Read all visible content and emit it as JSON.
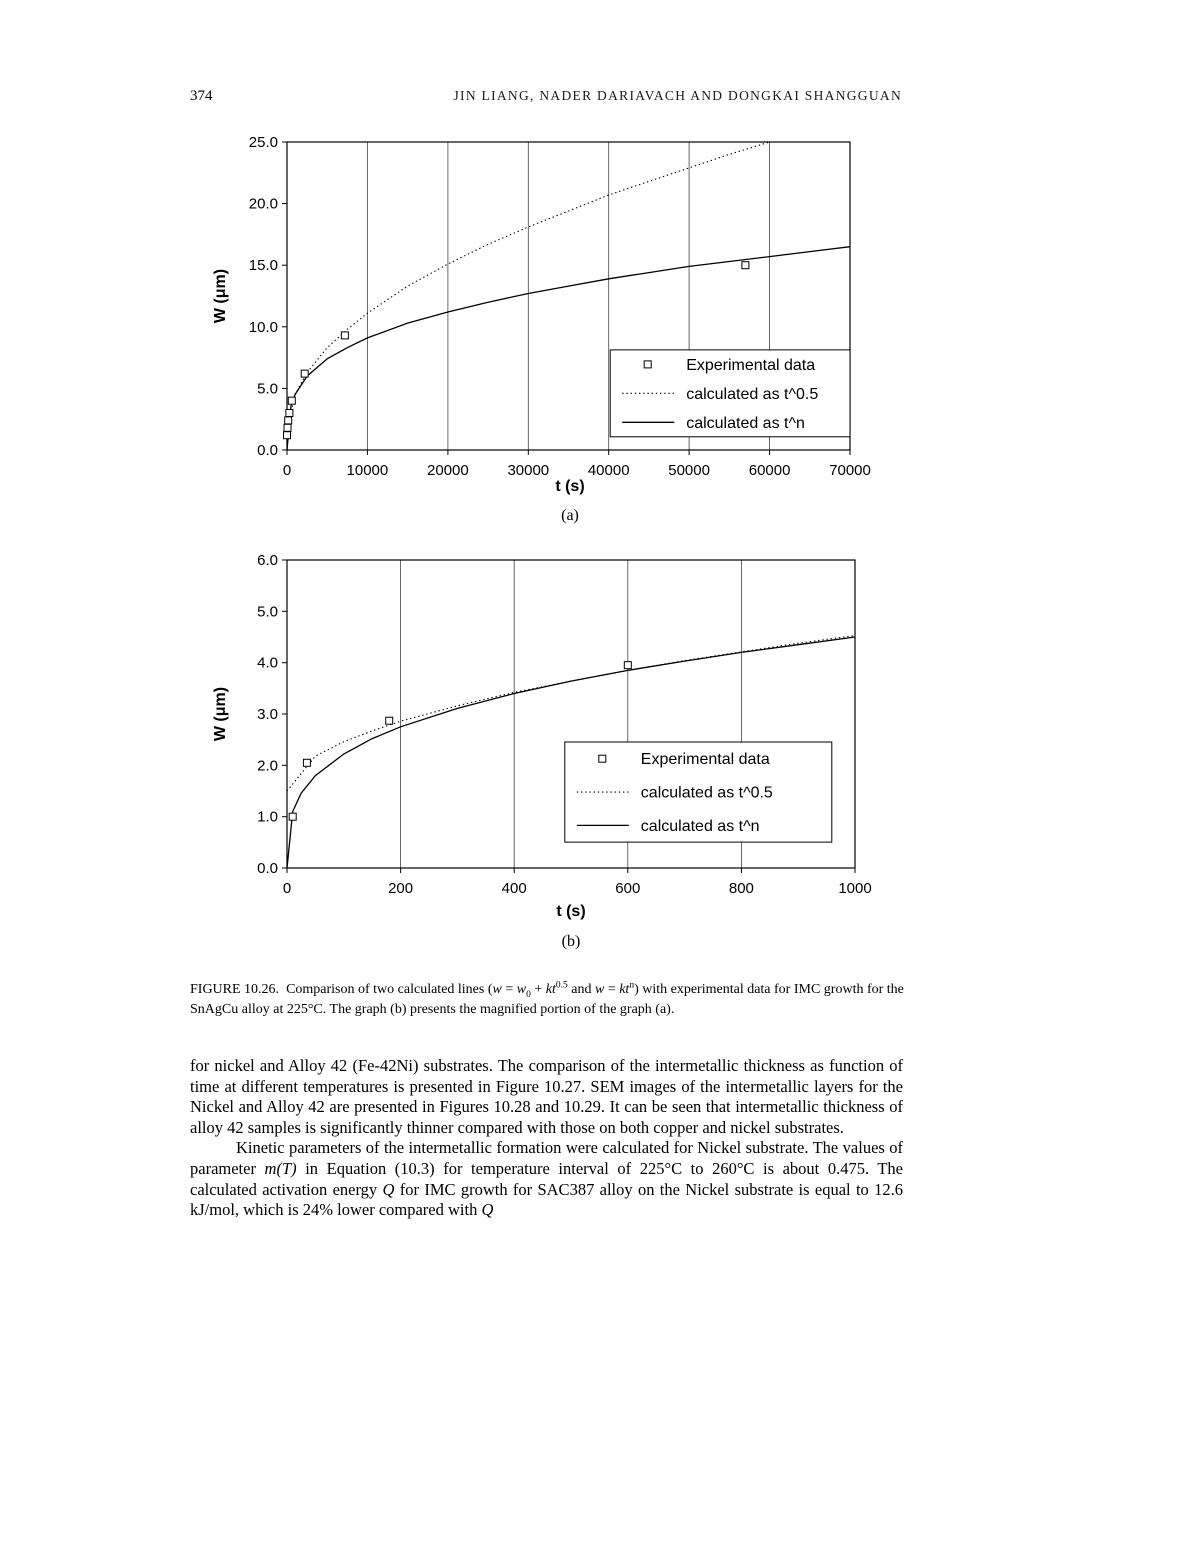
{
  "page": {
    "number": "374",
    "running_title": "JIN LIANG, NADER DARIAVACH AND DONGKAI SHANGGUAN"
  },
  "figure": {
    "caption_parts": [
      {
        "t": "FIGURE 10.26."
      },
      {
        "t": " Comparison of two calculated lines ("
      },
      {
        "s": "i",
        "t": "w"
      },
      {
        "t": " = "
      },
      {
        "s": "i",
        "t": "w"
      },
      {
        "s": "sub",
        "t": "0"
      },
      {
        "t": " + "
      },
      {
        "s": "i",
        "t": "kt"
      },
      {
        "s": "sup",
        "t": "0.5"
      },
      {
        "t": " and "
      },
      {
        "s": "i",
        "t": "w"
      },
      {
        "t": " = "
      },
      {
        "s": "i",
        "t": "kt"
      },
      {
        "s": "sup",
        "t": "n"
      },
      {
        "t": ") with experimental data for IMC growth for the SnAgCu alloy at 225°C. The graph (b) presents the magnified portion of the graph (a)."
      }
    ]
  },
  "body": {
    "p1_parts": [
      {
        "t": "for nickel and Alloy 42 (Fe-42Ni) substrates. The comparison of the intermetallic thickness as function of time at different temperatures is presented in Figure 10.27. SEM images of the intermetallic layers for the Nickel and Alloy 42 are presented in Figures 10.28 and 10.29. It can be seen that intermetallic thickness of alloy 42 samples is significantly thinner compared with those on both copper and nickel substrates."
      }
    ],
    "p2_parts": [
      {
        "t": "Kinetic parameters of the intermetallic formation were calculated for Nickel substrate. The values of parameter "
      },
      {
        "s": "i",
        "t": "m(T)"
      },
      {
        "t": " in Equation (10.3) for temperature interval of 225°C to 260°C is about 0.475. The calculated activation energy "
      },
      {
        "s": "i",
        "t": "Q"
      },
      {
        "t": " for IMC growth for SAC387 alloy on the Nickel substrate is equal to 12.6 kJ/mol, which is 24% lower compared with "
      },
      {
        "s": "i",
        "t": "Q"
      }
    ]
  },
  "chart_data": [
    {
      "id": "a",
      "type": "line",
      "xlabel": "t (s)",
      "ylabel": "W (μm)",
      "sublabel": "(a)",
      "xlim": [
        0,
        70000
      ],
      "ylim": [
        0,
        25
      ],
      "xticks": [
        0,
        10000,
        20000,
        30000,
        40000,
        50000,
        60000,
        70000
      ],
      "xtick_labels": [
        "0",
        "10000",
        "20000",
        "30000",
        "40000",
        "50000",
        "60000",
        "70000"
      ],
      "yticks": [
        0,
        5,
        10,
        15,
        20,
        25
      ],
      "ytick_labels": [
        "0.0",
        "5.0",
        "10.0",
        "15.0",
        "20.0",
        "25.0"
      ],
      "grid": "vertical-only",
      "legend": {
        "position": "inside-right",
        "box": {
          "x": 0.574,
          "y": 0.675,
          "w": 0.426,
          "h": 0.282
        }
      },
      "series": [
        {
          "name": "Experimental data",
          "style": "points",
          "points": [
            [
              0,
              1.2
            ],
            [
              60,
              1.8
            ],
            [
              150,
              2.4
            ],
            [
              300,
              3.0
            ],
            [
              600,
              4.0
            ],
            [
              2200,
              6.2
            ],
            [
              7200,
              9.3
            ],
            [
              57000,
              15.0
            ]
          ]
        },
        {
          "name": "calculated as t^0.5",
          "style": "dotted",
          "points": [
            [
              0,
              1.5
            ],
            [
              1000,
              4.5
            ],
            [
              2500,
              6.3
            ],
            [
              5000,
              8.3
            ],
            [
              7500,
              9.8
            ],
            [
              10000,
              11.1
            ],
            [
              15000,
              13.3
            ],
            [
              20000,
              15.1
            ],
            [
              25000,
              16.7
            ],
            [
              30000,
              18.1
            ],
            [
              35000,
              19.4
            ],
            [
              40000,
              20.7
            ],
            [
              45000,
              21.8
            ],
            [
              50000,
              22.9
            ],
            [
              55000,
              24.0
            ],
            [
              60000,
              25.0
            ]
          ]
        },
        {
          "name": "calculated as t^n",
          "style": "solid",
          "points": [
            [
              0,
              0
            ],
            [
              500,
              3.6
            ],
            [
              1000,
              4.5
            ],
            [
              2500,
              6.0
            ],
            [
              5000,
              7.4
            ],
            [
              7500,
              8.3
            ],
            [
              10000,
              9.1
            ],
            [
              15000,
              10.3
            ],
            [
              20000,
              11.2
            ],
            [
              25000,
              12.0
            ],
            [
              30000,
              12.7
            ],
            [
              35000,
              13.3
            ],
            [
              40000,
              13.9
            ],
            [
              45000,
              14.4
            ],
            [
              50000,
              14.9
            ],
            [
              55000,
              15.3
            ],
            [
              60000,
              15.7
            ],
            [
              65000,
              16.1
            ],
            [
              70000,
              16.5
            ]
          ]
        }
      ]
    },
    {
      "id": "b",
      "type": "line",
      "xlabel": "t (s)",
      "ylabel": "W (μm)",
      "sublabel": "(b)",
      "xlim": [
        0,
        1000
      ],
      "ylim": [
        0,
        6
      ],
      "xticks": [
        0,
        200,
        400,
        600,
        800,
        1000
      ],
      "xtick_labels": [
        "0",
        "200",
        "400",
        "600",
        "800",
        "1000"
      ],
      "yticks": [
        0,
        1,
        2,
        3,
        4,
        5,
        6
      ],
      "ytick_labels": [
        "0.0",
        "1.0",
        "2.0",
        "3.0",
        "4.0",
        "5.0",
        "6.0"
      ],
      "grid": "vertical-only",
      "legend": {
        "position": "inside-right",
        "box": {
          "x": 0.489,
          "y": 0.591,
          "w": 0.47,
          "h": 0.325
        }
      },
      "series": [
        {
          "name": "Experimental data",
          "style": "points",
          "points": [
            [
              10,
              1.0
            ],
            [
              35,
              2.05
            ],
            [
              180,
              2.87
            ],
            [
              600,
              3.95
            ]
          ]
        },
        {
          "name": "calculated as t^0.5",
          "style": "dotted",
          "points": [
            [
              0,
              1.5
            ],
            [
              50,
              2.18
            ],
            [
              100,
              2.46
            ],
            [
              150,
              2.67
            ],
            [
              200,
              2.86
            ],
            [
              300,
              3.16
            ],
            [
              400,
              3.42
            ],
            [
              500,
              3.64
            ],
            [
              600,
              3.85
            ],
            [
              700,
              4.04
            ],
            [
              800,
              4.21
            ],
            [
              900,
              4.38
            ],
            [
              1000,
              4.53
            ]
          ]
        },
        {
          "name": "calculated as t^n",
          "style": "solid",
          "points": [
            [
              0,
              0
            ],
            [
              10,
              1.1
            ],
            [
              25,
              1.46
            ],
            [
              50,
              1.8
            ],
            [
              100,
              2.22
            ],
            [
              150,
              2.52
            ],
            [
              200,
              2.75
            ],
            [
              300,
              3.11
            ],
            [
              400,
              3.4
            ],
            [
              500,
              3.64
            ],
            [
              600,
              3.85
            ],
            [
              700,
              4.03
            ],
            [
              800,
              4.2
            ],
            [
              900,
              4.35
            ],
            [
              1000,
              4.5
            ]
          ]
        }
      ]
    }
  ]
}
